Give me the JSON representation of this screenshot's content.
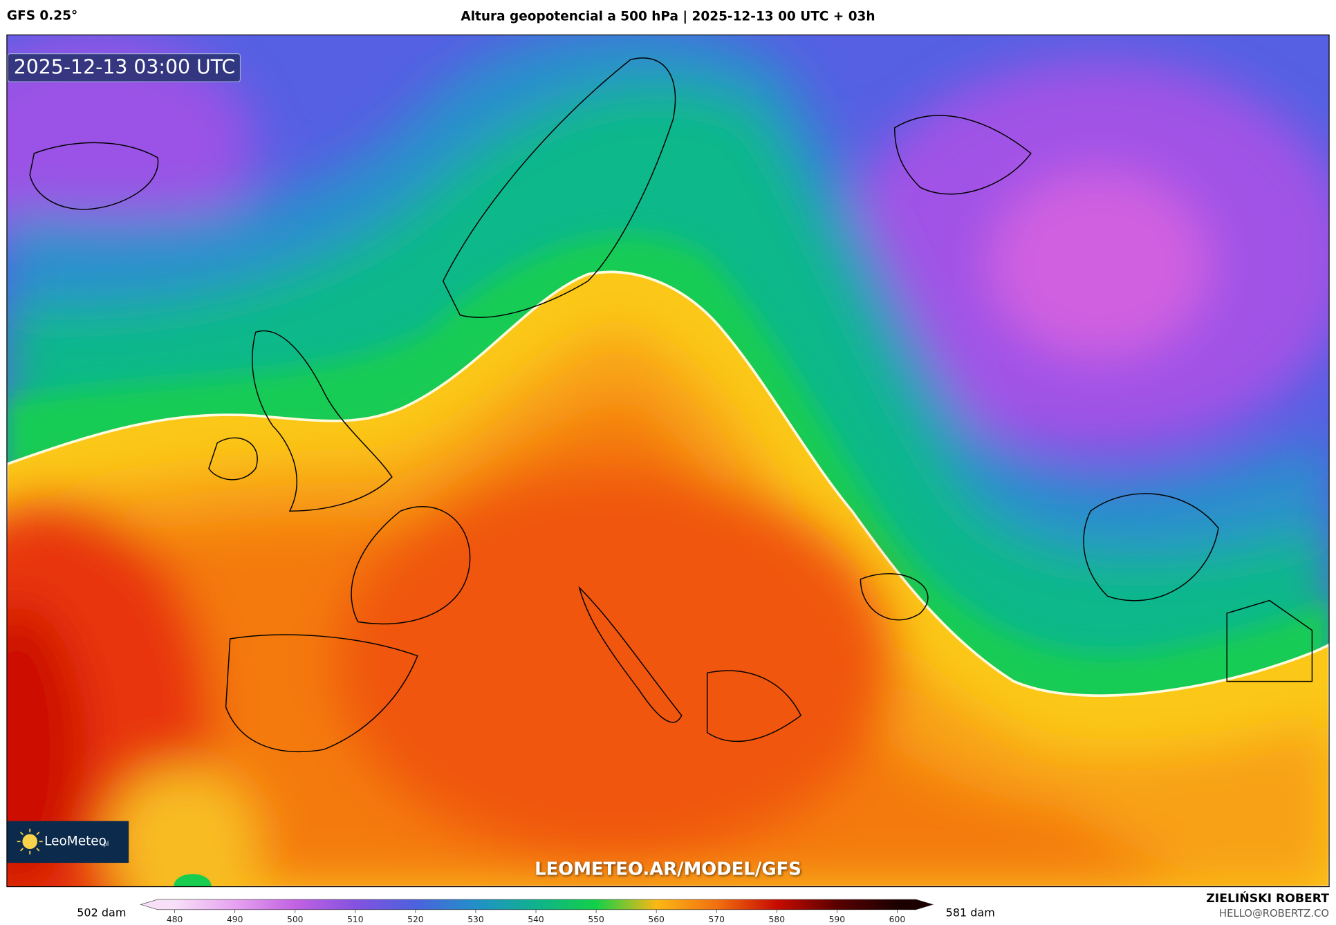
{
  "header": {
    "model": "GFS 0.25°",
    "title": "Altura geopotencial a 500 hPa | 2025-12-13 00 UTC + 03h"
  },
  "map": {
    "timestamp": "2025-12-13 03:00 UTC",
    "watermark": "LEOMETEO.AR/MODEL/GFS",
    "logo": "LeoMeteo",
    "logo_suffix": ".pl"
  },
  "colorbar": {
    "min_label": "502 dam",
    "max_label": "581 dam",
    "ticks": [
      480,
      490,
      500,
      510,
      520,
      530,
      540,
      550,
      560,
      570,
      580,
      590,
      600
    ],
    "colors": [
      "#f8e0f8",
      "#e6a2f0",
      "#c262e2",
      "#8452e0",
      "#4c62de",
      "#2290c8",
      "#10b28e",
      "#12d048",
      "#fbb815",
      "#f27010",
      "#c80c00",
      "#5a0000",
      "#1c0000"
    ]
  },
  "footer": {
    "author": "ZIELIŃSKI ROBERT",
    "email": "HELLO@ROBERTZ.CO"
  }
}
